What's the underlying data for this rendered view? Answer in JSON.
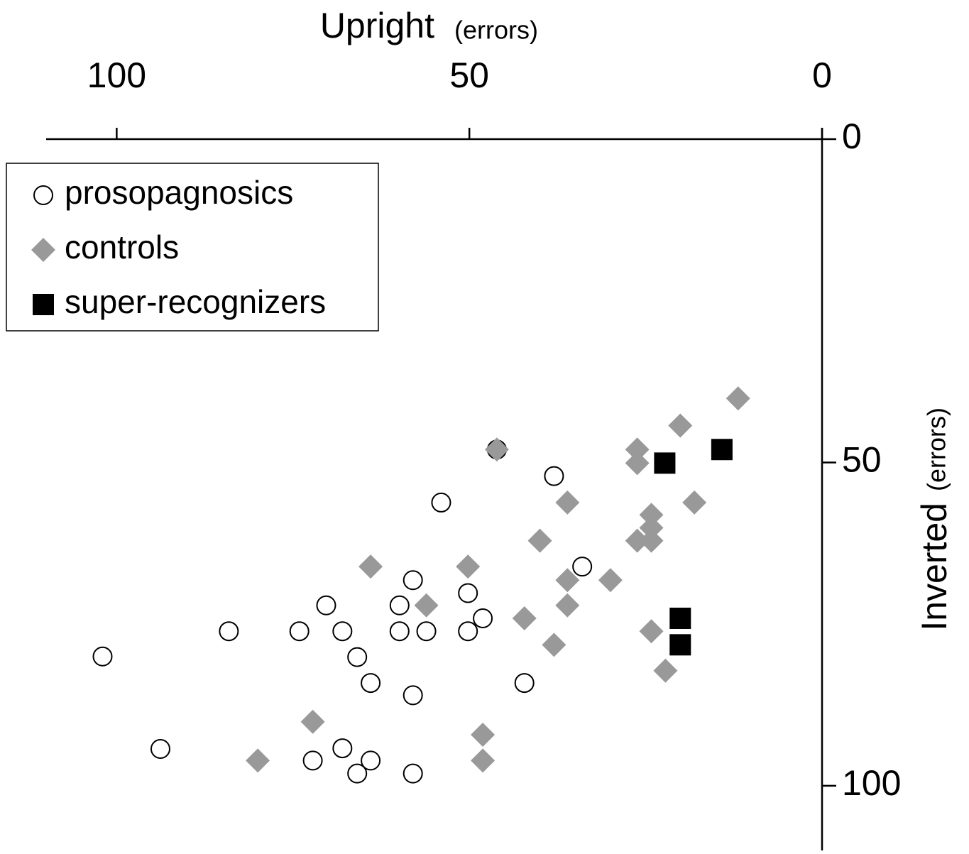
{
  "chart_data": {
    "type": "scatter",
    "x_label": "Upright",
    "x_label_unit": "(errors)",
    "y_label": "Inverted",
    "y_label_unit": "(errors)",
    "xlim": [
      110,
      0
    ],
    "xticks": [
      100,
      50,
      0
    ],
    "ylim": [
      0,
      110
    ],
    "yticks": [
      0,
      50,
      100
    ],
    "legend": "top-left",
    "series": [
      {
        "name": "prosopagnosics",
        "marker": "circle",
        "color": "#ffffff",
        "x": [
          102,
          93.8,
          84.1,
          74.1,
          70.3,
          68,
          65.9,
          64,
          72.2,
          68,
          65.9,
          64,
          59.9,
          59.9,
          58,
          56.1,
          58,
          58,
          54,
          50.2,
          50.2,
          48.1,
          46.1,
          42.2,
          38,
          34
        ],
        "values": [
          80,
          94.3,
          76.1,
          76.1,
          72.1,
          76.1,
          80.1,
          84.1,
          96.1,
          94.2,
          98.1,
          96.1,
          72.1,
          76.1,
          68.2,
          76.1,
          86,
          98.1,
          56.2,
          70.2,
          76.1,
          74.1,
          48,
          84.1,
          52.1,
          66.1
        ]
      },
      {
        "name": "controls",
        "marker": "diamond",
        "color": "#999999",
        "x": [
          46.1,
          11.9,
          20.1,
          26.2,
          26.2,
          18.1,
          24.2,
          24.2,
          26.2,
          24.2,
          36.1,
          40,
          30,
          36.1,
          36.1,
          42.2,
          38,
          24.2,
          22.2,
          50.2,
          64,
          56.1,
          72.2,
          80,
          48.1,
          48.1
        ],
        "values": [
          48,
          40.1,
          44.3,
          48,
          50.1,
          56.2,
          58.1,
          60.1,
          62.1,
          62.1,
          56.2,
          62.1,
          68.2,
          68.2,
          72.1,
          74.1,
          78.2,
          76.1,
          82.2,
          66.1,
          66.1,
          72.1,
          90.1,
          96.1,
          92.1,
          96.1
        ]
      },
      {
        "name": "super-recognizers",
        "marker": "square",
        "color": "#000000",
        "x": [
          22.3,
          14.2,
          20.1,
          20.1
        ],
        "values": [
          50.1,
          48,
          74.1,
          78.2
        ]
      }
    ]
  }
}
